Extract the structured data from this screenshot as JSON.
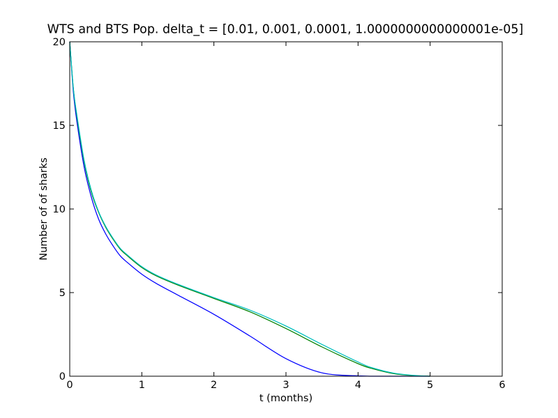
{
  "chart_data": {
    "type": "line",
    "title": "WTS and BTS Pop. delta_t = [0.01, 0.001, 0.0001, 1.0000000000000001e-05]",
    "xlabel": "t (months)",
    "ylabel": "Number of of sharks",
    "xlim": [
      0,
      6
    ],
    "ylim": [
      0,
      20
    ],
    "xticks": [
      "0",
      "1",
      "2",
      "3",
      "4",
      "5",
      "6"
    ],
    "yticks": [
      "0",
      "5",
      "10",
      "15",
      "20"
    ],
    "grid": false,
    "legend": "none",
    "series": [
      {
        "color": "#0000ff",
        "x": [
          0,
          0.05,
          0.1,
          0.2,
          0.3,
          0.4,
          0.5,
          0.6,
          0.7,
          0.8,
          1.0,
          1.2,
          1.5,
          2.0,
          2.5,
          3.0,
          3.5,
          4.0,
          4.2,
          4.5,
          5.0
        ],
        "y": [
          20,
          17.0,
          15.2,
          12.5,
          10.7,
          9.4,
          8.5,
          7.8,
          7.2,
          6.8,
          6.1,
          5.55,
          4.85,
          3.7,
          2.4,
          1.05,
          0.2,
          0.02,
          0.0,
          0.0,
          0.0
        ]
      },
      {
        "color": "#008000",
        "x": [
          0,
          0.05,
          0.1,
          0.2,
          0.3,
          0.4,
          0.5,
          0.6,
          0.7,
          0.8,
          1.0,
          1.2,
          1.5,
          2.0,
          2.5,
          3.0,
          3.5,
          4.0,
          4.2,
          4.5,
          4.8,
          5.0
        ],
        "y": [
          20,
          17.2,
          15.5,
          12.8,
          11.0,
          9.8,
          8.9,
          8.2,
          7.6,
          7.2,
          6.5,
          6.0,
          5.45,
          4.65,
          3.85,
          2.85,
          1.75,
          0.75,
          0.45,
          0.15,
          0.03,
          0.0
        ]
      },
      {
        "color": "#00bfbf",
        "x": [
          0,
          0.05,
          0.1,
          0.2,
          0.3,
          0.4,
          0.5,
          0.6,
          0.7,
          0.8,
          1.0,
          1.2,
          1.5,
          2.0,
          2.5,
          3.0,
          3.5,
          4.0,
          4.2,
          4.5,
          4.8,
          5.0
        ],
        "y": [
          20,
          17.2,
          15.6,
          12.9,
          11.1,
          9.85,
          8.95,
          8.25,
          7.65,
          7.25,
          6.55,
          6.05,
          5.5,
          4.7,
          3.95,
          3.0,
          1.9,
          0.85,
          0.5,
          0.18,
          0.04,
          0.0
        ]
      }
    ]
  }
}
